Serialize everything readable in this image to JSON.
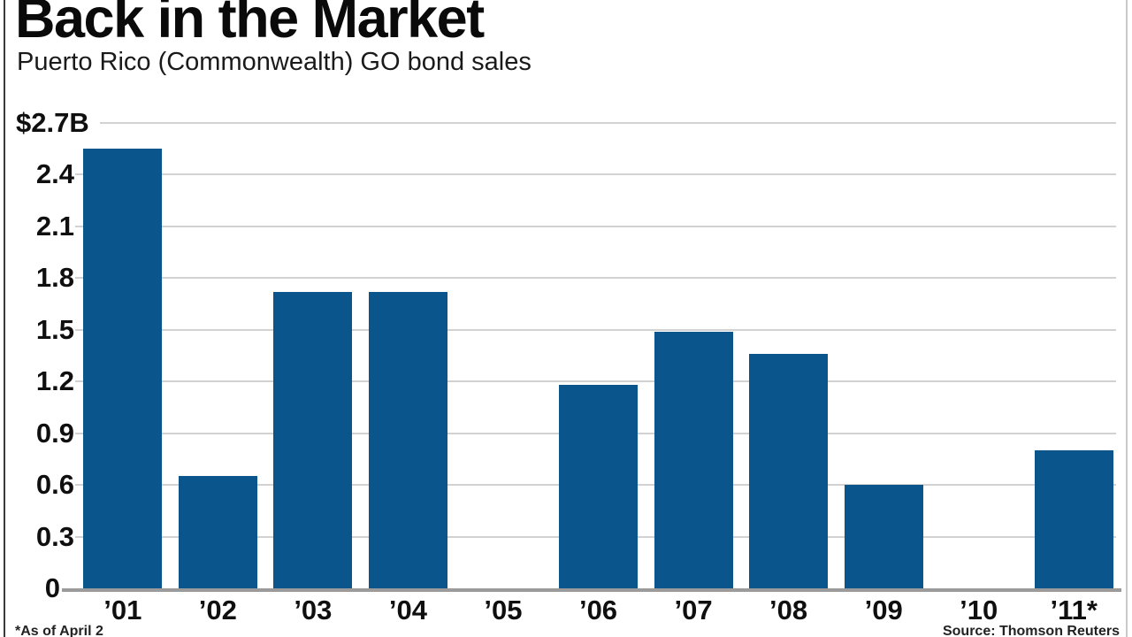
{
  "header": {
    "title": "Back in the Market",
    "subtitle": "Puerto Rico (Commonwealth) GO bond sales"
  },
  "footer": {
    "footnote": "*As of April 2",
    "source": "Source: Thomson Reuters"
  },
  "colors": {
    "bar": "#0a568c",
    "gridline": "#d2d2d2",
    "axis": "#9b9b9b",
    "text": "#0f0f0f",
    "frame_left": "#3a3a3a",
    "frame_right": "#c9c9c9"
  },
  "chart_data": {
    "type": "bar",
    "title": "Back in the Market",
    "subtitle": "Puerto Rico (Commonwealth) GO bond sales",
    "categories": [
      "’01",
      "’02",
      "’03",
      "’04",
      "’05",
      "’06",
      "’07",
      "’08",
      "’09",
      "’10",
      "’11*"
    ],
    "values": [
      2.55,
      0.65,
      1.72,
      1.72,
      0,
      1.18,
      1.49,
      1.36,
      0.6,
      0,
      0.8
    ],
    "unit": "billions USD",
    "xlabel": "",
    "ylabel": "GO bond sales ($B)",
    "ylim": [
      0,
      2.7
    ],
    "ytick_values": [
      2.7,
      2.4,
      2.1,
      1.8,
      1.5,
      1.2,
      0.9,
      0.6,
      0.3,
      0
    ],
    "ytick_labels": [
      "$2.7B",
      "2.4",
      "2.1",
      "1.8",
      "1.5",
      "1.2",
      "0.9",
      "0.6",
      "0.3",
      "0"
    ],
    "grid": true,
    "legend": null,
    "footnote": "*As of April 2",
    "source": "Source: Thomson Reuters"
  }
}
